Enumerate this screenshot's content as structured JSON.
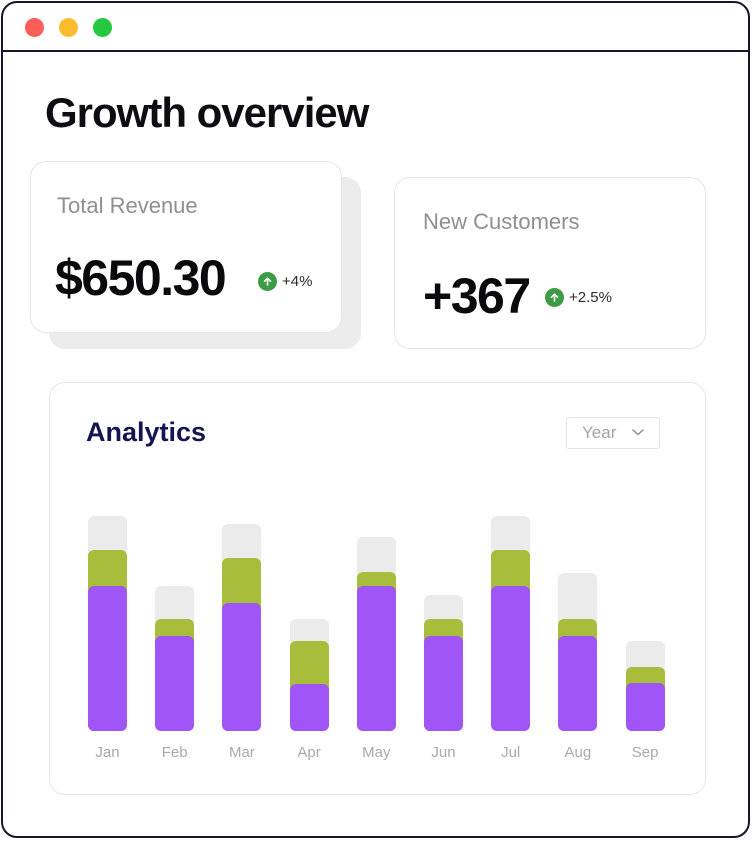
{
  "window": {
    "controls": [
      {
        "name": "close-dot",
        "color": "#fd5e5a"
      },
      {
        "name": "minimize-dot",
        "color": "#fcbc2e"
      },
      {
        "name": "maximize-dot",
        "color": "#27c83f"
      }
    ]
  },
  "page": {
    "title": "Growth overview"
  },
  "cards": {
    "revenue": {
      "label": "Total Revenue",
      "value": "$650.30",
      "delta": "+4%"
    },
    "customers": {
      "label": "New Customers",
      "value": "+367",
      "delta": "+2.5%"
    }
  },
  "analytics": {
    "title": "Analytics",
    "period_select": {
      "value": "Year"
    }
  },
  "colors": {
    "purple": "#a056f7",
    "green": "#a7bd3b",
    "gray": "#ebebeb",
    "positive": "#3d9b45"
  },
  "chart_data": {
    "type": "bar",
    "categories": [
      "Jan",
      "Feb",
      "Mar",
      "Apr",
      "May",
      "Jun",
      "Jul",
      "Aug",
      "Sep"
    ],
    "series": [
      {
        "values": [
          111,
          73,
          98,
          36,
          111,
          73,
          111,
          73,
          37
        ]
      },
      {
        "values": [
          28,
          13,
          35,
          33,
          11,
          13,
          28,
          13,
          12
        ]
      },
      {
        "values": [
          26,
          25,
          26,
          17,
          27,
          18,
          26,
          35,
          20
        ]
      }
    ],
    "stacked": true,
    "ylim": [
      0,
      165
    ],
    "grid": false,
    "legend": "none"
  }
}
